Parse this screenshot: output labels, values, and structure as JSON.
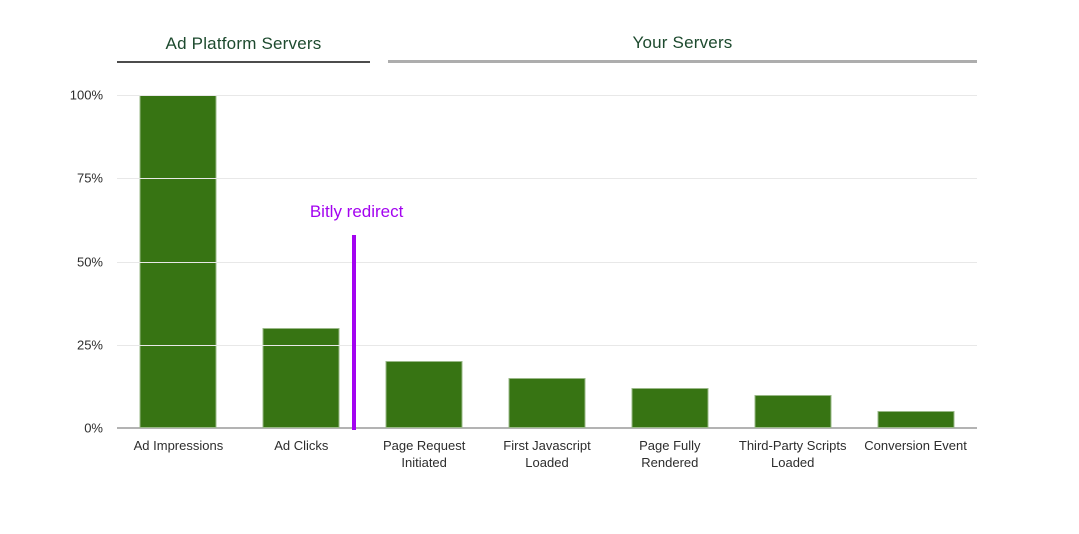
{
  "page": {
    "background": "#ffffff"
  },
  "header": {
    "groups": [
      {
        "label": "Ad Platform Servers",
        "underline_color": "#4c4c4c"
      },
      {
        "label": "Your Servers",
        "underline_color": "#adadad"
      }
    ]
  },
  "chart_data": {
    "type": "bar",
    "title": "",
    "categories": [
      "Ad Impressions",
      "Ad Clicks",
      "Page Request Initiated",
      "First Javascript Loaded",
      "Page Fully Rendered",
      "Third-Party Scripts Loaded",
      "Conversion Event"
    ],
    "values": [
      100,
      30,
      20,
      15,
      12,
      10,
      5
    ],
    "unit": "%",
    "xlabel": "",
    "ylabel": "",
    "ylim": [
      0,
      100
    ],
    "grid": true,
    "legend_position": "none",
    "bar_color": "#377413",
    "yticks": [
      {
        "label": "100%",
        "value": 100
      },
      {
        "label": "75%",
        "value": 75
      },
      {
        "label": "50%",
        "value": 50
      },
      {
        "label": "25%",
        "value": 25
      },
      {
        "label": "0%",
        "value": 0
      }
    ],
    "group_spans": [
      {
        "label": "Ad Platform Servers",
        "categories": [
          "Ad Impressions",
          "Ad Clicks"
        ]
      },
      {
        "label": "Your Servers",
        "categories": [
          "Page Request Initiated",
          "First Javascript Loaded",
          "Page Fully Rendered",
          "Third-Party Scripts Loaded",
          "Conversion Event"
        ]
      }
    ],
    "annotation": {
      "label": "Bitly redirect",
      "color": "#A303F0",
      "position": "between Ad Clicks and Page Request Initiated",
      "x_fraction": 0.2756,
      "height_fraction": 0.58
    }
  }
}
